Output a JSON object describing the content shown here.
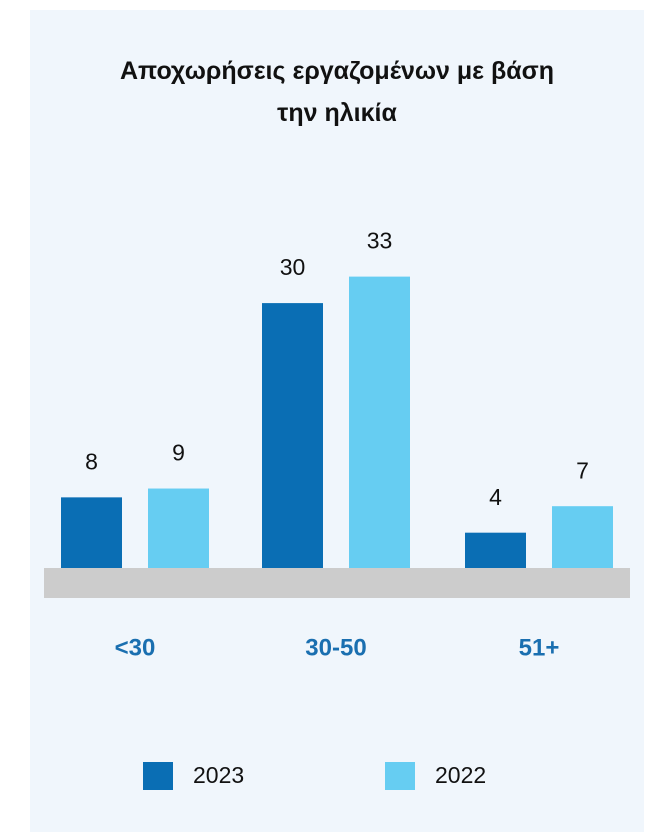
{
  "chart_data": {
    "type": "bar",
    "title": "Αποχωρήσεις εργαζομένων με βάση την ηλικία",
    "categories": [
      "<30",
      "30-50",
      "51+"
    ],
    "series": [
      {
        "name": "2023",
        "color": "#0a6eb4",
        "values": [
          8,
          30,
          4
        ]
      },
      {
        "name": "2022",
        "color": "#66cdf2",
        "values": [
          9,
          33,
          7
        ]
      }
    ]
  }
}
